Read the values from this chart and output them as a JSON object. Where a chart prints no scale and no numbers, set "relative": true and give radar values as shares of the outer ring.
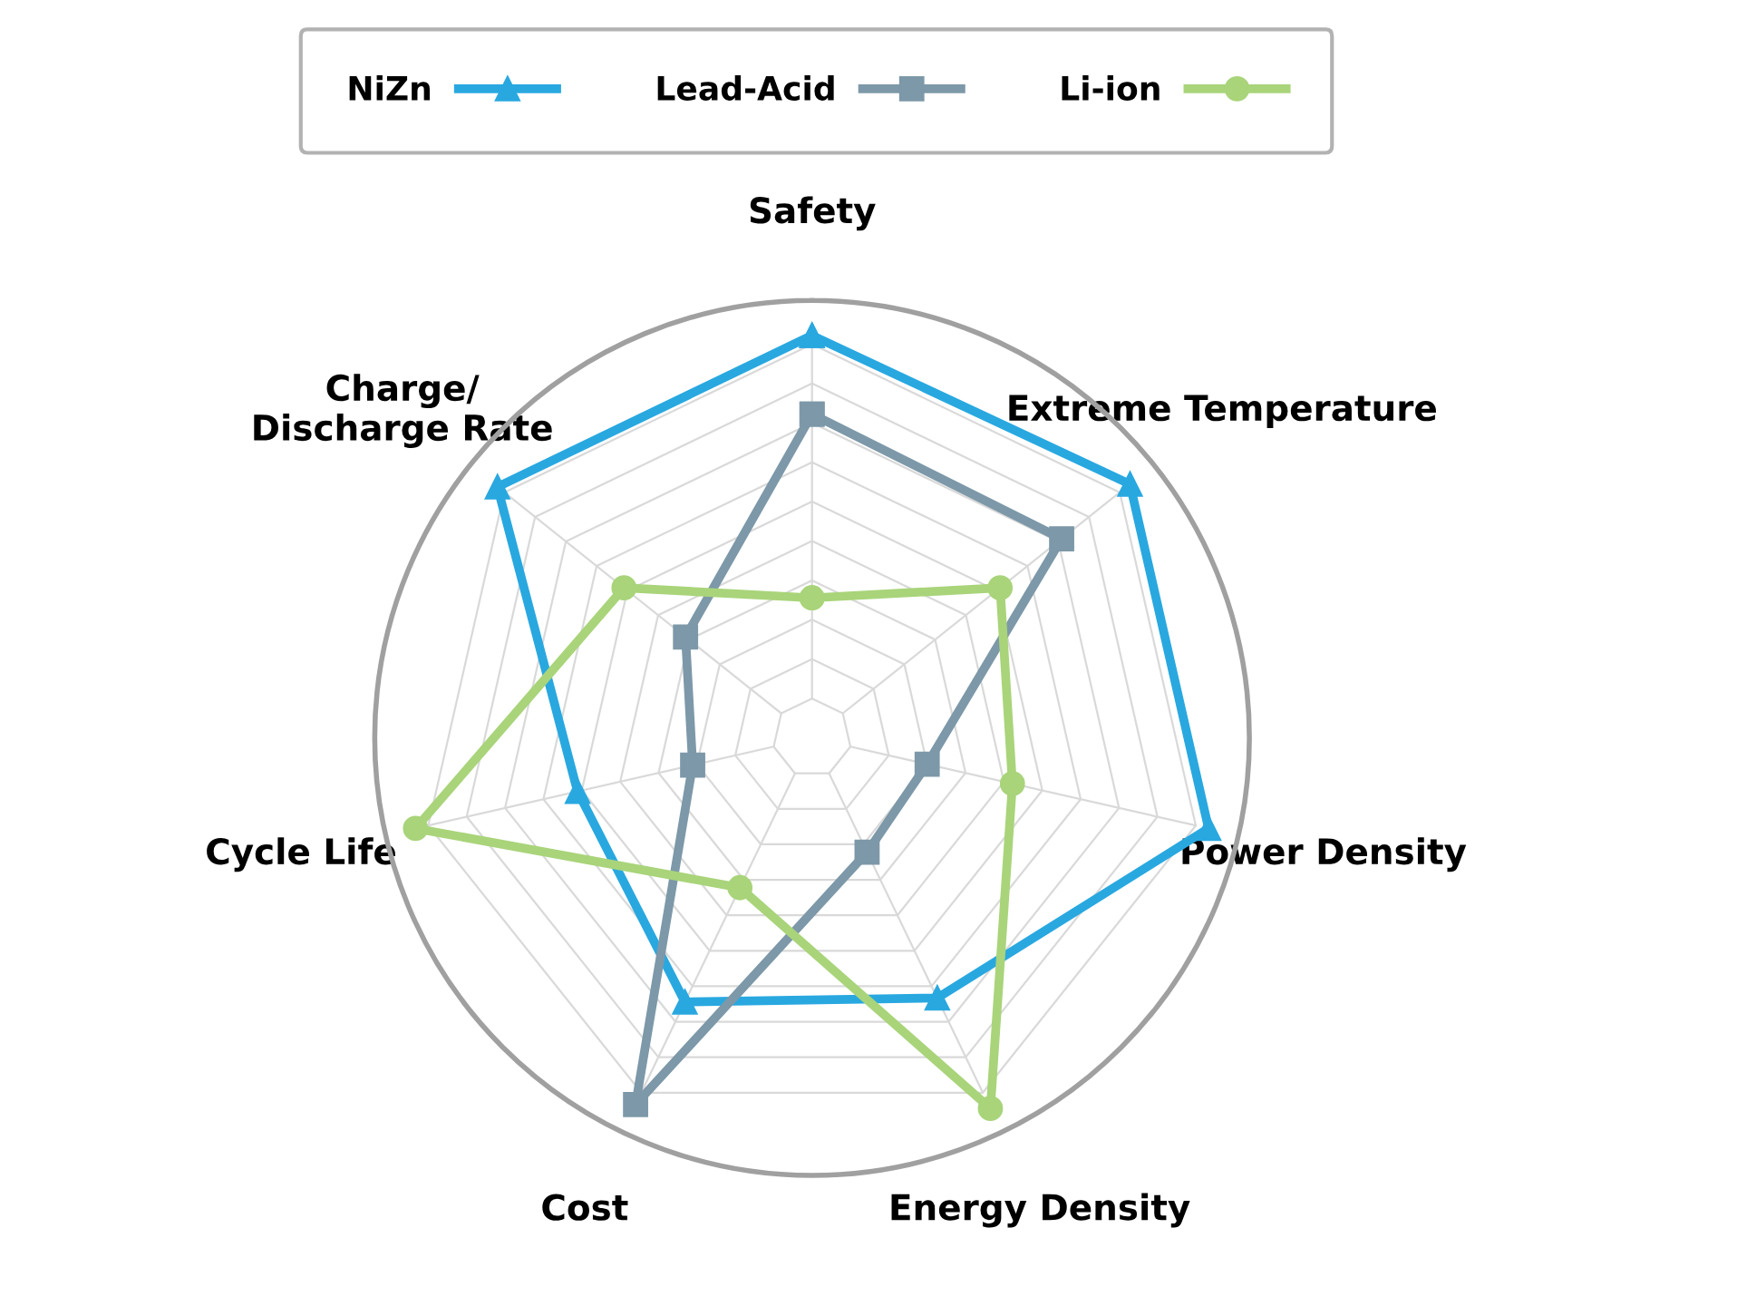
{
  "chart_data": {
    "type": "radar",
    "relative": true,
    "grid": true,
    "legend": "top",
    "categories": [
      "Safety",
      "Extreme Temperature",
      "Power Density",
      "Energy Density",
      "Cost",
      "Cycle Life",
      "Charge/\nDischarge Rate"
    ],
    "series": [
      {
        "name": "NiZn",
        "color": "#29a8e0",
        "marker": "triangle",
        "values": [
          0.92,
          0.93,
          0.93,
          0.66,
          0.67,
          0.55,
          0.92
        ]
      },
      {
        "name": "Lead-Acid",
        "color": "#7d98a8",
        "marker": "square",
        "values": [
          0.74,
          0.73,
          0.27,
          0.29,
          0.93,
          0.28,
          0.37
        ]
      },
      {
        "name": "Li-ion",
        "color": "#a9d47a",
        "marker": "circle",
        "values": [
          0.32,
          0.55,
          0.47,
          0.94,
          0.38,
          0.93,
          0.55
        ]
      }
    ]
  }
}
